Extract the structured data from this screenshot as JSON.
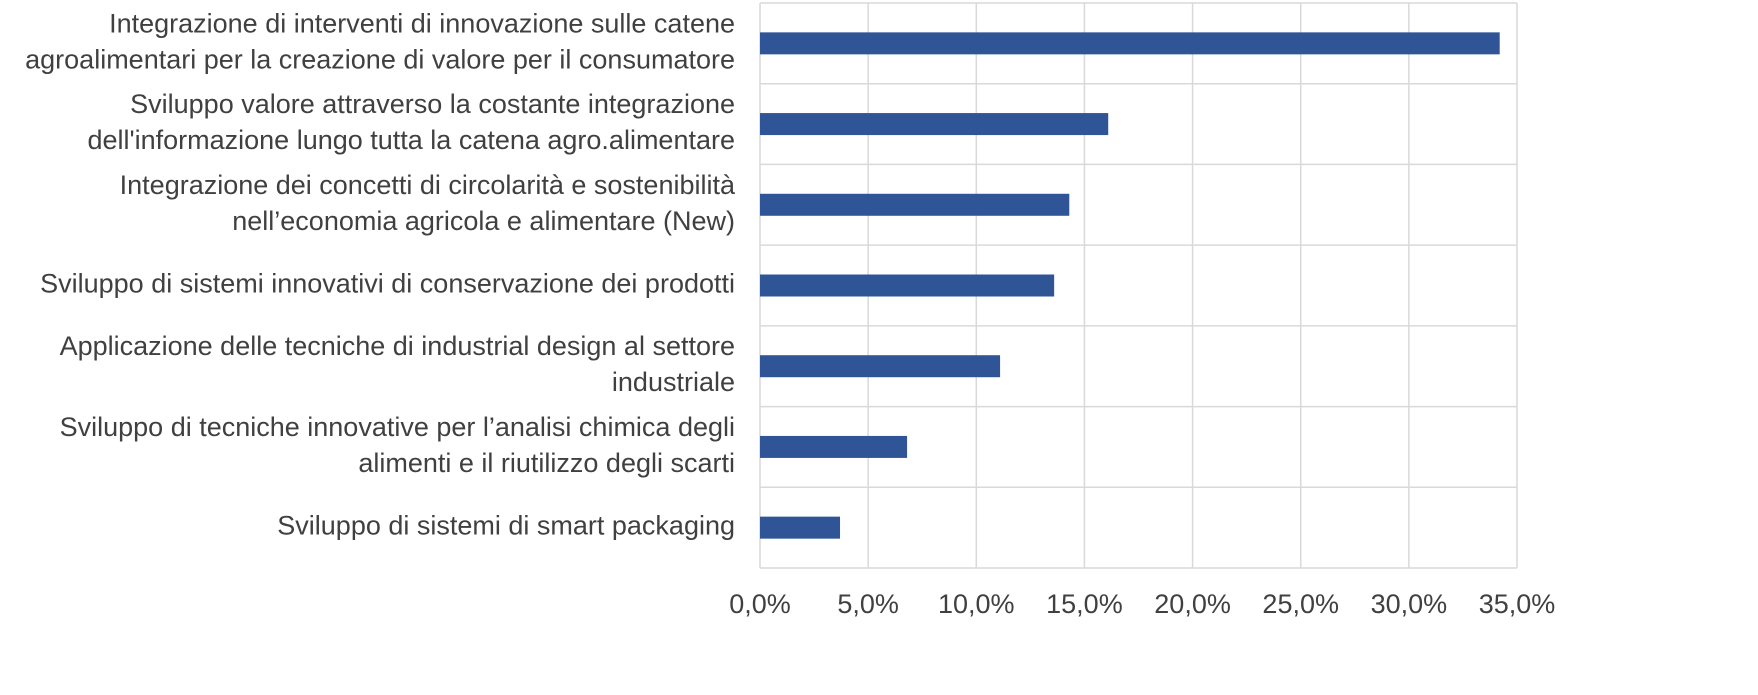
{
  "chart_data": {
    "type": "barh",
    "categories": [
      "Integrazione di interventi di innovazione sulle catene\nagroalimentari per la creazione di valore per il consumatore",
      "Sviluppo valore attraverso la costante integrazione\ndell'informazione lungo tutta la catena agro.alimentare",
      "Integrazione dei concetti di circolarità e sostenibilità\nnell’economia agricola e alimentare (New)",
      "Sviluppo di sistemi innovativi di conservazione dei prodotti",
      "Applicazione delle tecniche di industrial design al settore\nindustriale",
      "Sviluppo di tecniche innovative per l’analisi chimica degli\nalimenti e il riutilizzo degli scarti",
      "Sviluppo di sistemi di smart packaging"
    ],
    "values": [
      34.2,
      16.1,
      14.3,
      13.6,
      11.1,
      6.8,
      3.7
    ],
    "color": "#2f5597",
    "xlim": [
      0,
      35
    ],
    "xticks": [
      {
        "value": 0,
        "label": "0,0%"
      },
      {
        "value": 5,
        "label": "5,0%"
      },
      {
        "value": 10,
        "label": "10,0%"
      },
      {
        "value": 15,
        "label": "15,0%"
      },
      {
        "value": 20,
        "label": "20,0%"
      },
      {
        "value": 25,
        "label": "25,0%"
      },
      {
        "value": 30,
        "label": "30,0%"
      },
      {
        "value": 35,
        "label": "35,0%"
      }
    ],
    "grid": true
  }
}
